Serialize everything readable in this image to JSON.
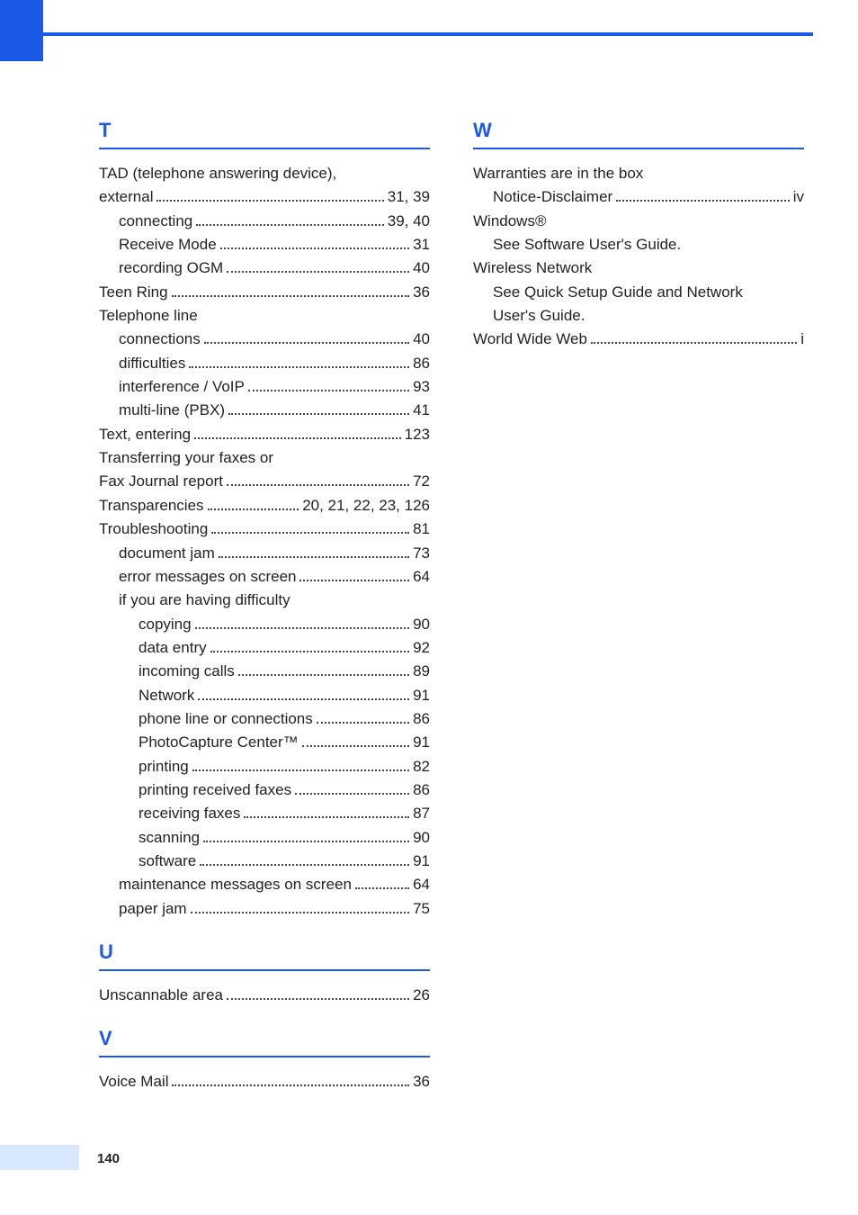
{
  "page_number": "140",
  "colors": {
    "accent": "#1a5ae6",
    "text": "#222222",
    "footer_tab": "#d8e8ff",
    "background": "#ffffff"
  },
  "left_sections": [
    {
      "letter": "T",
      "entries": [
        {
          "label": "TAD (telephone answering device),",
          "pages": "",
          "indent": 0,
          "noline": true
        },
        {
          "label": "external",
          "pages": "31, 39",
          "indent": 0
        },
        {
          "label": "connecting",
          "pages": "39, 40",
          "indent": 1
        },
        {
          "label": "Receive Mode",
          "pages": "31",
          "indent": 1
        },
        {
          "label": "recording OGM",
          "pages": "40",
          "indent": 1
        },
        {
          "label": "Teen Ring",
          "pages": "36",
          "indent": 0
        },
        {
          "label": "Telephone line",
          "pages": "",
          "indent": 0,
          "noline": true
        },
        {
          "label": "connections",
          "pages": "40",
          "indent": 1
        },
        {
          "label": "difficulties",
          "pages": "86",
          "indent": 1
        },
        {
          "label": "interference / VoIP",
          "pages": "93",
          "indent": 1
        },
        {
          "label": "multi-line (PBX)",
          "pages": "41",
          "indent": 1
        },
        {
          "label": "Text, entering",
          "pages": "123",
          "indent": 0
        },
        {
          "label": "Transferring your faxes or",
          "pages": "",
          "indent": 0,
          "noline": true
        },
        {
          "label": "Fax Journal report",
          "pages": "72",
          "indent": 0
        },
        {
          "label": "Transparencies",
          "pages": "20, 21, 22, 23, 126",
          "indent": 0
        },
        {
          "label": "Troubleshooting",
          "pages": "81",
          "indent": 0
        },
        {
          "label": "document jam",
          "pages": "73",
          "indent": 1
        },
        {
          "label": "error messages on screen",
          "pages": "64",
          "indent": 1
        },
        {
          "label": "if you are having difficulty",
          "pages": "",
          "indent": 1,
          "noline": true
        },
        {
          "label": "copying",
          "pages": "90",
          "indent": 2
        },
        {
          "label": "data entry",
          "pages": "92",
          "indent": 2
        },
        {
          "label": "incoming calls",
          "pages": "89",
          "indent": 2
        },
        {
          "label": "Network",
          "pages": "91",
          "indent": 2
        },
        {
          "label": "phone line or connections",
          "pages": "86",
          "indent": 2
        },
        {
          "label": "PhotoCapture Center™",
          "pages": "91",
          "indent": 2
        },
        {
          "label": "printing",
          "pages": "82",
          "indent": 2
        },
        {
          "label": "printing received faxes",
          "pages": "86",
          "indent": 2
        },
        {
          "label": "receiving faxes",
          "pages": "87",
          "indent": 2
        },
        {
          "label": "scanning",
          "pages": "90",
          "indent": 2
        },
        {
          "label": "software",
          "pages": "91",
          "indent": 2
        },
        {
          "label": "maintenance messages on screen",
          "pages": "64",
          "indent": 1
        },
        {
          "label": "paper jam",
          "pages": "75",
          "indent": 1
        }
      ]
    },
    {
      "letter": "U",
      "entries": [
        {
          "label": "Unscannable area",
          "pages": "26",
          "indent": 0
        }
      ]
    },
    {
      "letter": "V",
      "entries": [
        {
          "label": "Voice Mail",
          "pages": "36",
          "indent": 0
        }
      ]
    }
  ],
  "right_sections": [
    {
      "letter": "W",
      "entries": [
        {
          "label": "Warranties are in the box",
          "pages": "",
          "indent": 0,
          "noline": true
        },
        {
          "label": "Notice-Disclaimer",
          "pages": "iv",
          "indent": 1
        },
        {
          "label": "Windows®",
          "pages": "",
          "indent": 0,
          "noline": true
        },
        {
          "label": "See Software User's Guide.",
          "pages": "",
          "indent": 1,
          "noline": true
        },
        {
          "label": "Wireless Network",
          "pages": "",
          "indent": 0,
          "noline": true
        },
        {
          "label": "See Quick Setup Guide and Network",
          "pages": "",
          "indent": 1,
          "noline": true
        },
        {
          "label": "User's Guide.",
          "pages": "",
          "indent": 1,
          "noline": true
        },
        {
          "label": "World Wide Web",
          "pages": "i",
          "indent": 0
        }
      ]
    }
  ]
}
